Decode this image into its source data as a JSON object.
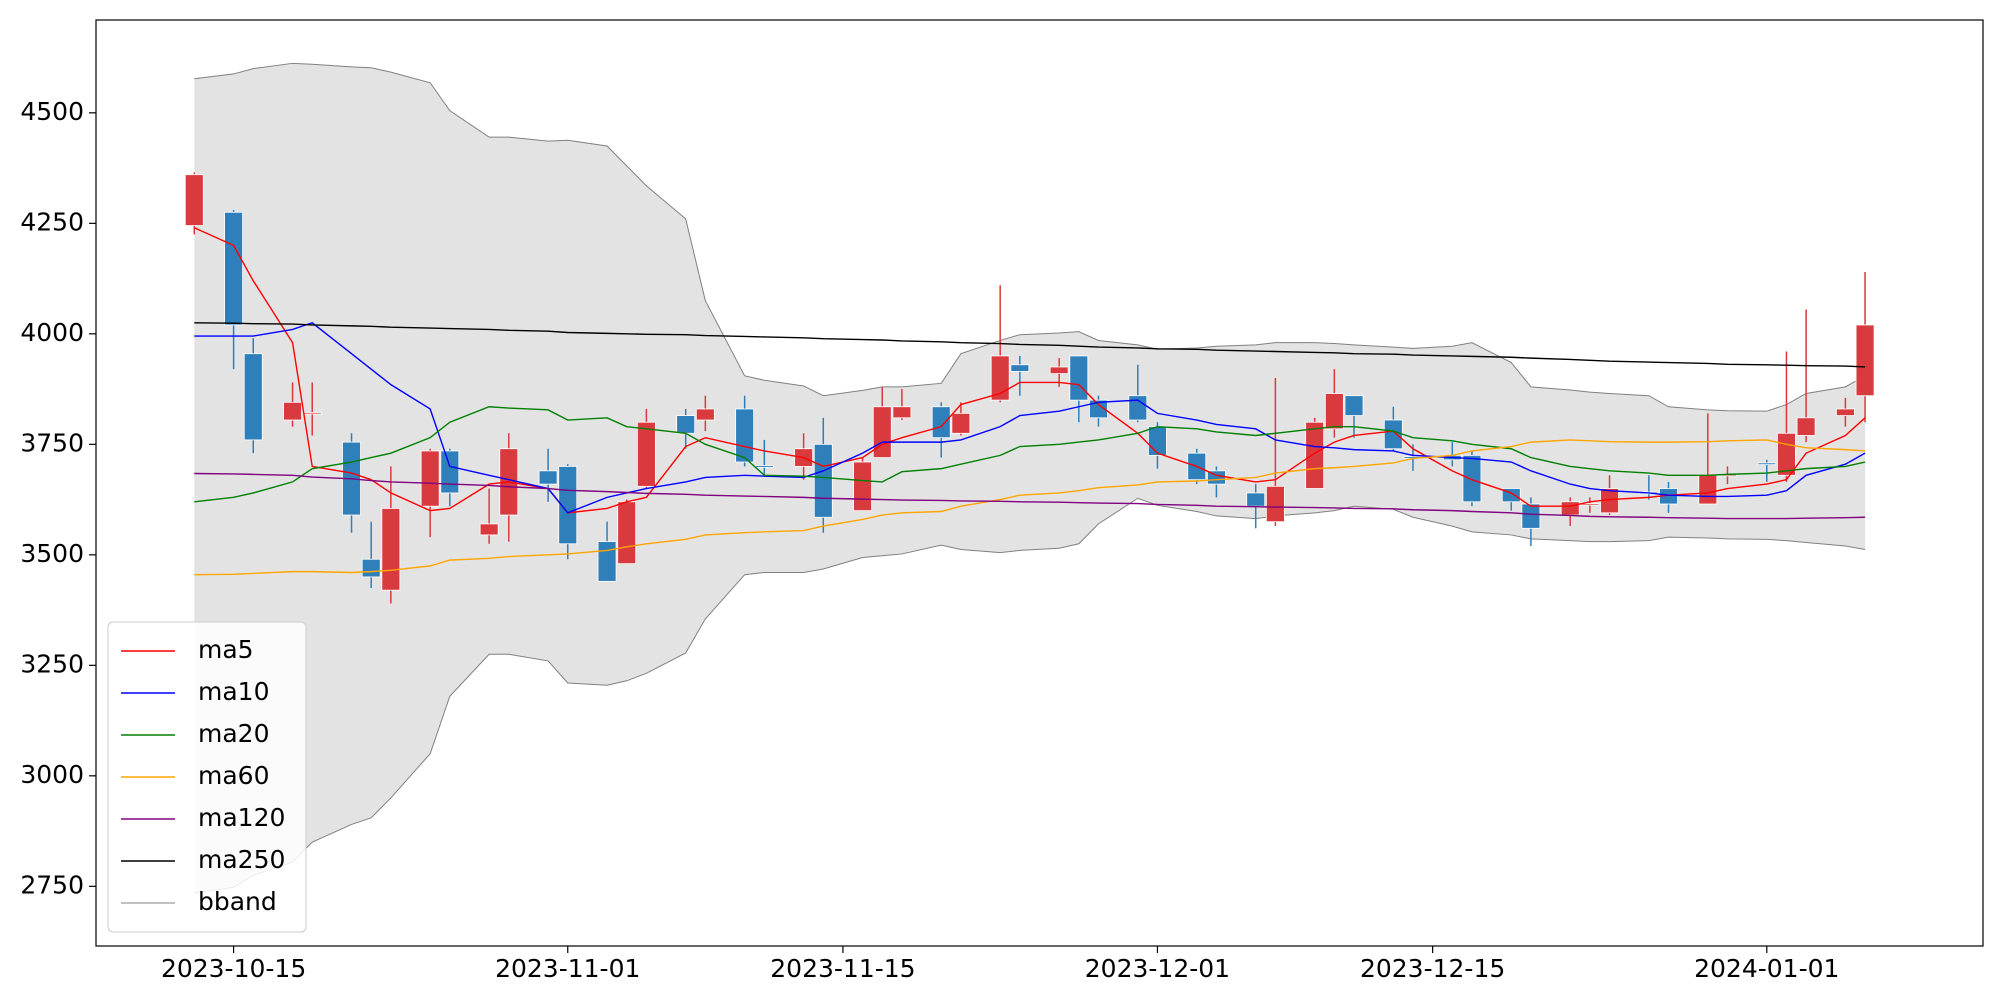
{
  "chart_data": {
    "type": "candlestick",
    "x": [
      "2023-10-13",
      "2023-10-15",
      "2023-10-16",
      "2023-10-18",
      "2023-10-19",
      "2023-10-21",
      "2023-10-22",
      "2023-10-23",
      "2023-10-25",
      "2023-10-26",
      "2023-10-28",
      "2023-10-29",
      "2023-10-31",
      "2023-11-01",
      "2023-11-03",
      "2023-11-04",
      "2023-11-05",
      "2023-11-07",
      "2023-11-08",
      "2023-11-10",
      "2023-11-11",
      "2023-11-13",
      "2023-11-14",
      "2023-11-16",
      "2023-11-17",
      "2023-11-18",
      "2023-11-20",
      "2023-11-21",
      "2023-11-23",
      "2023-11-24",
      "2023-11-26",
      "2023-11-27",
      "2023-11-28",
      "2023-11-30",
      "2023-12-01",
      "2023-12-03",
      "2023-12-04",
      "2023-12-06",
      "2023-12-07",
      "2023-12-09",
      "2023-12-10",
      "2023-12-11",
      "2023-12-13",
      "2023-12-14",
      "2023-12-16",
      "2023-12-17",
      "2023-12-19",
      "2023-12-20",
      "2023-12-22",
      "2023-12-23",
      "2023-12-24",
      "2023-12-26",
      "2023-12-27",
      "2023-12-29",
      "2023-12-30",
      "2024-01-01",
      "2024-01-02",
      "2024-01-03",
      "2024-01-05",
      "2024-01-06"
    ],
    "open": [
      4245,
      4275,
      3955,
      3805,
      3820,
      3755,
      3490,
      3420,
      3610,
      3735,
      3545,
      3590,
      3690,
      3700,
      3530,
      3480,
      3655,
      3815,
      3805,
      3830,
      3702,
      3700,
      3750,
      3600,
      3720,
      3810,
      3835,
      3775,
      3850,
      3930,
      3910,
      3950,
      3850,
      3860,
      3790,
      3730,
      3690,
      3640,
      3575,
      3650,
      3785,
      3860,
      3805,
      3722,
      3725,
      3725,
      3650,
      3615,
      3590,
      3614,
      3595,
      3642,
      3650,
      3615,
      3680,
      3708,
      3680,
      3770,
      3815,
      3860
    ],
    "high": [
      4365,
      4280,
      3990,
      3890,
      3890,
      3775,
      3575,
      3700,
      3740,
      3740,
      3650,
      3775,
      3740,
      3705,
      3575,
      3625,
      3830,
      3830,
      3860,
      3860,
      3760,
      3775,
      3810,
      3720,
      3880,
      3875,
      3845,
      3845,
      4110,
      3950,
      3945,
      3950,
      3860,
      3930,
      3800,
      3740,
      3700,
      3660,
      3900,
      3810,
      3920,
      3860,
      3835,
      3750,
      3755,
      3735,
      3650,
      3630,
      3630,
      3630,
      3680,
      3680,
      3665,
      3820,
      3700,
      3715,
      3960,
      4055,
      3855,
      4140
    ],
    "low": [
      4225,
      3920,
      3730,
      3790,
      3770,
      3550,
      3425,
      3390,
      3540,
      3610,
      3525,
      3530,
      3620,
      3490,
      3440,
      3480,
      3650,
      3740,
      3780,
      3700,
      3680,
      3670,
      3550,
      3600,
      3720,
      3805,
      3720,
      3770,
      3845,
      3860,
      3880,
      3800,
      3790,
      3800,
      3695,
      3660,
      3630,
      3560,
      3565,
      3650,
      3765,
      3765,
      3735,
      3690,
      3700,
      3610,
      3600,
      3520,
      3565,
      3595,
      3590,
      3625,
      3595,
      3615,
      3660,
      3665,
      3665,
      3755,
      3790,
      3800
    ],
    "close": [
      4360,
      4020,
      3760,
      3845,
      3822,
      3590,
      3450,
      3605,
      3735,
      3640,
      3570,
      3740,
      3660,
      3525,
      3440,
      3620,
      3800,
      3775,
      3830,
      3710,
      3698,
      3740,
      3585,
      3710,
      3835,
      3835,
      3765,
      3820,
      3950,
      3915,
      3925,
      3850,
      3810,
      3805,
      3725,
      3670,
      3660,
      3610,
      3655,
      3800,
      3865,
      3815,
      3740,
      3718,
      3715,
      3620,
      3620,
      3560,
      3620,
      3616,
      3650,
      3638,
      3615,
      3680,
      3682,
      3704,
      3775,
      3810,
      3830,
      4020
    ],
    "up_color": "#d93a3e",
    "down_color": "#2f7fbb",
    "series": [
      {
        "name": "ma5",
        "color": "#ff0000",
        "values": [
          4240,
          4200,
          4120,
          3980,
          3700,
          3685,
          3670,
          3640,
          3600,
          3605,
          3660,
          3665,
          3650,
          3595,
          3605,
          3620,
          3630,
          3745,
          3765,
          3745,
          3735,
          3720,
          3700,
          3720,
          3750,
          3765,
          3790,
          3840,
          3865,
          3890,
          3890,
          3885,
          3840,
          3775,
          3730,
          3700,
          3680,
          3665,
          3670,
          3730,
          3755,
          3770,
          3780,
          3740,
          3690,
          3670,
          3640,
          3610,
          3610,
          3620,
          3625,
          3630,
          3635,
          3640,
          3650,
          3660,
          3670,
          3730,
          3770,
          3810
        ]
      },
      {
        "name": "ma10",
        "color": "#0000ff",
        "values": [
          3995,
          3995,
          3995,
          4010,
          4025,
          3955,
          3920,
          3885,
          3830,
          3700,
          3680,
          3670,
          3650,
          3595,
          3630,
          3640,
          3650,
          3665,
          3675,
          3680,
          3678,
          3675,
          3690,
          3730,
          3755,
          3755,
          3755,
          3760,
          3790,
          3815,
          3825,
          3835,
          3845,
          3850,
          3820,
          3805,
          3795,
          3785,
          3760,
          3745,
          3742,
          3738,
          3735,
          3725,
          3720,
          3718,
          3710,
          3690,
          3660,
          3650,
          3645,
          3640,
          3635,
          3632,
          3632,
          3635,
          3645,
          3680,
          3705,
          3730
        ]
      },
      {
        "name": "ma20",
        "color": "#008000",
        "values": [
          3620,
          3630,
          3640,
          3665,
          3695,
          3710,
          3720,
          3730,
          3765,
          3800,
          3835,
          3832,
          3828,
          3805,
          3810,
          3790,
          3785,
          3775,
          3750,
          3720,
          3680,
          3678,
          3675,
          3668,
          3665,
          3688,
          3695,
          3705,
          3725,
          3745,
          3750,
          3755,
          3760,
          3775,
          3790,
          3785,
          3778,
          3770,
          3775,
          3785,
          3790,
          3790,
          3780,
          3765,
          3758,
          3750,
          3740,
          3720,
          3700,
          3695,
          3690,
          3685,
          3680,
          3680,
          3682,
          3685,
          3690,
          3695,
          3700,
          3710
        ]
      },
      {
        "name": "ma60",
        "color": "#ffa500",
        "values": [
          3455,
          3456,
          3458,
          3462,
          3462,
          3460,
          3462,
          3465,
          3475,
          3488,
          3492,
          3496,
          3500,
          3502,
          3510,
          3518,
          3525,
          3535,
          3545,
          3550,
          3552,
          3555,
          3565,
          3580,
          3590,
          3595,
          3598,
          3610,
          3625,
          3635,
          3640,
          3645,
          3652,
          3658,
          3665,
          3667,
          3670,
          3675,
          3685,
          3695,
          3697,
          3700,
          3708,
          3718,
          3725,
          3735,
          3745,
          3755,
          3760,
          3758,
          3756,
          3755,
          3755,
          3756,
          3758,
          3760,
          3750,
          3742,
          3738,
          3735
        ]
      },
      {
        "name": "ma120",
        "color": "#800080",
        "values": [
          3684,
          3683,
          3682,
          3680,
          3676,
          3672,
          3668,
          3665,
          3662,
          3660,
          3657,
          3654,
          3650,
          3646,
          3643,
          3641,
          3639,
          3637,
          3635,
          3633,
          3632,
          3630,
          3628,
          3626,
          3625,
          3624,
          3623,
          3622,
          3621,
          3620,
          3619,
          3618,
          3617,
          3616,
          3614,
          3612,
          3610,
          3609,
          3608,
          3607,
          3606,
          3605,
          3604,
          3602,
          3600,
          3598,
          3595,
          3592,
          3589,
          3587,
          3586,
          3585,
          3584,
          3583,
          3582,
          3582,
          3582,
          3583,
          3584,
          3585
        ]
      },
      {
        "name": "ma250",
        "color": "#000000",
        "values": [
          4025,
          4024,
          4023,
          4022,
          4020,
          4018,
          4017,
          4015,
          4013,
          4012,
          4010,
          4008,
          4006,
          4003,
          4001,
          4000,
          3999,
          3998,
          3996,
          3994,
          3993,
          3991,
          3989,
          3987,
          3986,
          3984,
          3982,
          3980,
          3978,
          3976,
          3974,
          3972,
          3970,
          3968,
          3966,
          3965,
          3963,
          3961,
          3960,
          3958,
          3957,
          3955,
          3954,
          3952,
          3950,
          3949,
          3947,
          3945,
          3942,
          3940,
          3938,
          3936,
          3935,
          3933,
          3931,
          3930,
          3929,
          3928,
          3927,
          3925
        ]
      }
    ],
    "bband": {
      "name": "bband",
      "color": "#808080",
      "fill": "#e3e3e3",
      "upper": [
        4577,
        4588,
        4600,
        4612,
        4610,
        4604,
        4602,
        4592,
        4568,
        4505,
        4445,
        4445,
        4436,
        4438,
        4425,
        4380,
        4335,
        4260,
        4075,
        3905,
        3895,
        3882,
        3860,
        3872,
        3880,
        3880,
        3888,
        3955,
        3985,
        3998,
        4002,
        4005,
        3985,
        3975,
        3965,
        3968,
        3972,
        3975,
        3980,
        3980,
        3978,
        3975,
        3970,
        3967,
        3972,
        3980,
        3935,
        3880,
        3873,
        3868,
        3865,
        3860,
        3835,
        3828,
        3826,
        3825,
        3840,
        3865,
        3880,
        3905
      ],
      "lower": [
        2735,
        2748,
        2775,
        2805,
        2850,
        2890,
        2905,
        2950,
        3050,
        3180,
        3275,
        3275,
        3260,
        3210,
        3205,
        3215,
        3232,
        3278,
        3355,
        3455,
        3460,
        3460,
        3468,
        3494,
        3498,
        3502,
        3522,
        3512,
        3505,
        3510,
        3515,
        3525,
        3570,
        3628,
        3612,
        3598,
        3588,
        3582,
        3588,
        3595,
        3600,
        3610,
        3603,
        3585,
        3565,
        3552,
        3545,
        3536,
        3532,
        3530,
        3530,
        3532,
        3540,
        3538,
        3536,
        3535,
        3532,
        3528,
        3520,
        3512
      ]
    },
    "xlim": [
      "2023-10-08",
      "2024-01-12"
    ],
    "xticks": [
      "2023-10-15",
      "2023-11-01",
      "2023-11-15",
      "2023-12-01",
      "2023-12-15",
      "2024-01-01"
    ],
    "ylim": [
      2615,
      4710
    ],
    "yticks": [
      2750,
      3000,
      3250,
      3500,
      3750,
      4000,
      4250,
      4500
    ],
    "legend": "lower left"
  }
}
